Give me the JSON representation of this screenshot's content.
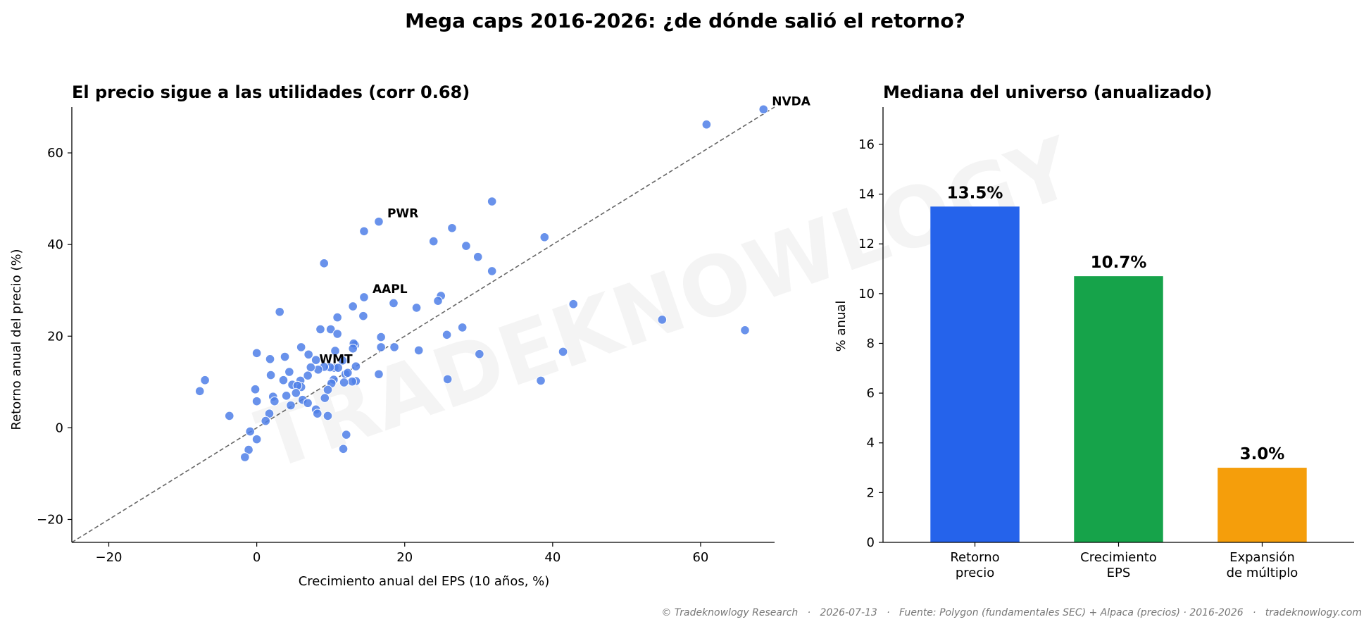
{
  "figure": {
    "suptitle": "Mega caps 2016-2026: ¿de dónde salió el retorno?",
    "watermark": "TRADEKNOWLOGY",
    "footer": "© Tradeknowlogy Research   ·   2026-07-13   ·   Fuente: Polygon (fundamentales SEC) + Alpaca (precios) · 2016-2026   ·   tradeknowlogy.com"
  },
  "chart_data": [
    {
      "type": "scatter",
      "title": "El precio sigue a las utilidades (corr 0.68)",
      "xlabel": "Crecimiento anual del EPS (10 años, %)",
      "ylabel": "Retorno anual del precio (%)",
      "xlim": [
        -25,
        70
      ],
      "ylim": [
        -25,
        70
      ],
      "xticks": [
        -20,
        0,
        20,
        40,
        60
      ],
      "yticks": [
        -20,
        0,
        20,
        40,
        60
      ],
      "reference_line": "y = x (dashed)",
      "point_color": "#4f7fe8",
      "annotations": [
        {
          "label": "NVDA",
          "x": 68.5,
          "y": 69.5
        },
        {
          "label": "PWR",
          "x": 16.5,
          "y": 45
        },
        {
          "label": "AAPL",
          "x": 14.5,
          "y": 28.5
        },
        {
          "label": "WMT",
          "x": 7.3,
          "y": 13.2
        }
      ],
      "points": [
        [
          68.5,
          69.5
        ],
        [
          60.8,
          66.2
        ],
        [
          66.0,
          21.3
        ],
        [
          54.8,
          23.6
        ],
        [
          42.8,
          27.0
        ],
        [
          41.4,
          16.6
        ],
        [
          38.4,
          10.3
        ],
        [
          38.9,
          41.6
        ],
        [
          31.8,
          49.4
        ],
        [
          31.8,
          34.2
        ],
        [
          29.9,
          37.3
        ],
        [
          28.3,
          39.7
        ],
        [
          26.4,
          43.6
        ],
        [
          23.9,
          40.7
        ],
        [
          30.1,
          16.1
        ],
        [
          27.8,
          21.9
        ],
        [
          25.7,
          20.3
        ],
        [
          25.8,
          10.6
        ],
        [
          24.9,
          28.8
        ],
        [
          24.5,
          27.7
        ],
        [
          21.6,
          26.2
        ],
        [
          21.9,
          16.9
        ],
        [
          18.5,
          27.2
        ],
        [
          18.6,
          17.6
        ],
        [
          16.5,
          45.0
        ],
        [
          14.5,
          42.9
        ],
        [
          16.8,
          19.8
        ],
        [
          16.8,
          17.6
        ],
        [
          16.5,
          11.7
        ],
        [
          14.5,
          28.5
        ],
        [
          14.4,
          24.4
        ],
        [
          13.0,
          26.5
        ],
        [
          10.9,
          24.1
        ],
        [
          9.1,
          35.9
        ],
        [
          8.6,
          21.5
        ],
        [
          10.0,
          21.5
        ],
        [
          10.9,
          20.5
        ],
        [
          13.3,
          18.1
        ],
        [
          13.1,
          18.4
        ],
        [
          13.0,
          17.3
        ],
        [
          10.6,
          16.8
        ],
        [
          13.4,
          13.4
        ],
        [
          13.4,
          10.2
        ],
        [
          12.9,
          10.1
        ],
        [
          11.6,
          14.7
        ],
        [
          12.0,
          11.7
        ],
        [
          12.3,
          12.0
        ],
        [
          10.5,
          13.1
        ],
        [
          11.0,
          13.1
        ],
        [
          10.4,
          10.5
        ],
        [
          11.8,
          9.9
        ],
        [
          10.1,
          9.7
        ],
        [
          9.9,
          13.2
        ],
        [
          9.1,
          13.3
        ],
        [
          9.6,
          8.3
        ],
        [
          9.2,
          6.5
        ],
        [
          8.0,
          14.8
        ],
        [
          8.3,
          12.7
        ],
        [
          7.0,
          16.0
        ],
        [
          6.0,
          17.6
        ],
        [
          7.3,
          13.2
        ],
        [
          6.9,
          11.4
        ],
        [
          5.9,
          10.3
        ],
        [
          6.0,
          8.9
        ],
        [
          4.8,
          9.4
        ],
        [
          4.4,
          12.2
        ],
        [
          3.6,
          10.4
        ],
        [
          3.8,
          15.5
        ],
        [
          3.1,
          25.3
        ],
        [
          1.8,
          15.0
        ],
        [
          1.9,
          11.5
        ],
        [
          0.0,
          16.3
        ],
        [
          5.5,
          9.2
        ],
        [
          5.3,
          7.6
        ],
        [
          4.0,
          7.0
        ],
        [
          2.2,
          6.8
        ],
        [
          2.4,
          5.8
        ],
        [
          -0.2,
          8.4
        ],
        [
          0.0,
          5.8
        ],
        [
          4.6,
          4.9
        ],
        [
          6.2,
          6.1
        ],
        [
          6.9,
          5.4
        ],
        [
          8.0,
          4.0
        ],
        [
          8.2,
          3.1
        ],
        [
          9.6,
          2.6
        ],
        [
          1.7,
          3.1
        ],
        [
          1.2,
          1.5
        ],
        [
          -0.9,
          -0.8
        ],
        [
          0.0,
          -2.5
        ],
        [
          -1.1,
          -4.8
        ],
        [
          -1.6,
          -6.4
        ],
        [
          -3.7,
          2.6
        ],
        [
          -7.7,
          8.0
        ],
        [
          -7.0,
          10.4
        ],
        [
          12.1,
          -1.5
        ],
        [
          11.7,
          -4.6
        ]
      ]
    },
    {
      "type": "bar",
      "title": "Mediana del universo (anualizado)",
      "ylabel": "% anual",
      "ylim": [
        0,
        17.5
      ],
      "yticks": [
        0,
        2,
        4,
        6,
        8,
        10,
        12,
        14,
        16
      ],
      "categories": [
        "Retorno\nprecio",
        "Crecimiento\nEPS",
        "Expansión\nde múltiplo"
      ],
      "values": [
        13.5,
        10.7,
        3.0
      ],
      "value_labels": [
        "13.5%",
        "10.7%",
        "3.0%"
      ],
      "colors": [
        "#2563eb",
        "#16a34a",
        "#f59e0b"
      ]
    }
  ]
}
